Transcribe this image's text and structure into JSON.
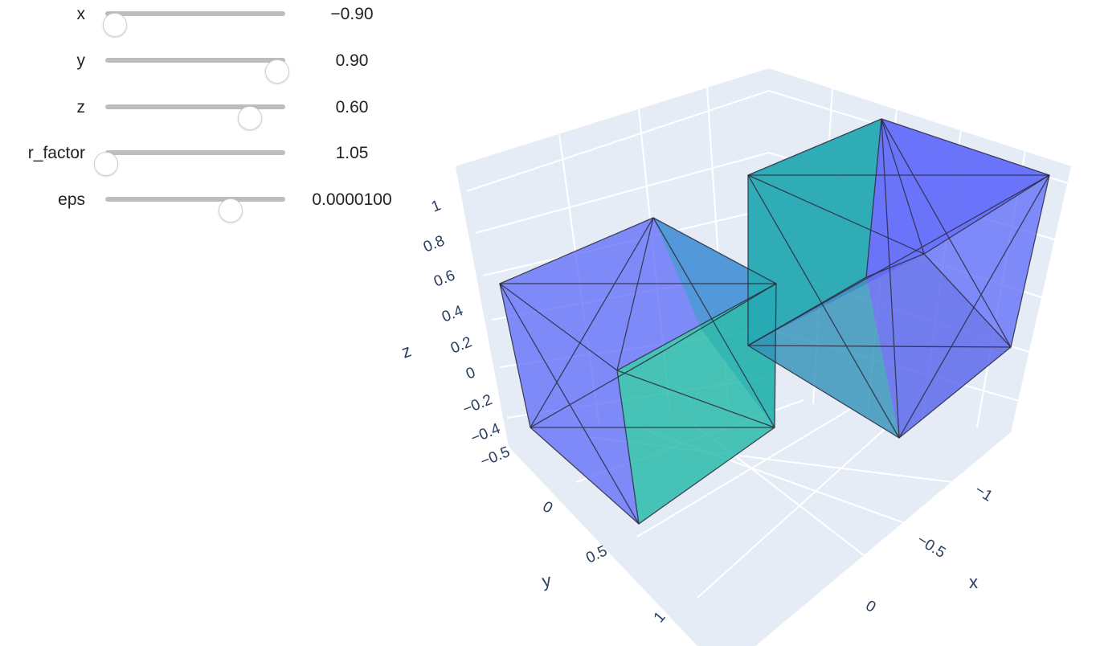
{
  "controls": [
    {
      "label": "x",
      "value_text": "−0.90",
      "value": -0.9,
      "level": 0.05
    },
    {
      "label": "y",
      "value_text": "0.90",
      "value": 0.9,
      "level": 0.95
    },
    {
      "label": "z",
      "value_text": "0.60",
      "value": 0.6,
      "level": 0.8
    },
    {
      "label": "r_factor",
      "value_text": "1.05",
      "value": 1.05,
      "level": 0.0
    },
    {
      "label": "eps",
      "value_text": "0.0000100",
      "value": 1e-05,
      "level": 0.69
    }
  ],
  "chart_data": {
    "type": "mesh3d",
    "axes": {
      "x": {
        "title": "x",
        "ticks": [
          "−1",
          "−0.5",
          "0"
        ]
      },
      "y": {
        "title": "y",
        "ticks": [
          "0",
          "0.5",
          "1"
        ]
      },
      "z": {
        "title": "z",
        "ticks": [
          "1",
          "0.8",
          "0.6",
          "0.4",
          "0.2",
          "0",
          "−0.2",
          "−0.4",
          "−0.5"
        ]
      }
    },
    "colors": {
      "scene_background": "#e5ecf6",
      "grid": "#ffffff",
      "mesh_purple": "#636efa",
      "mesh_teal": "#19b6a4",
      "edges": "#2b2b40",
      "tick_text": "#2a3f5f"
    }
  }
}
